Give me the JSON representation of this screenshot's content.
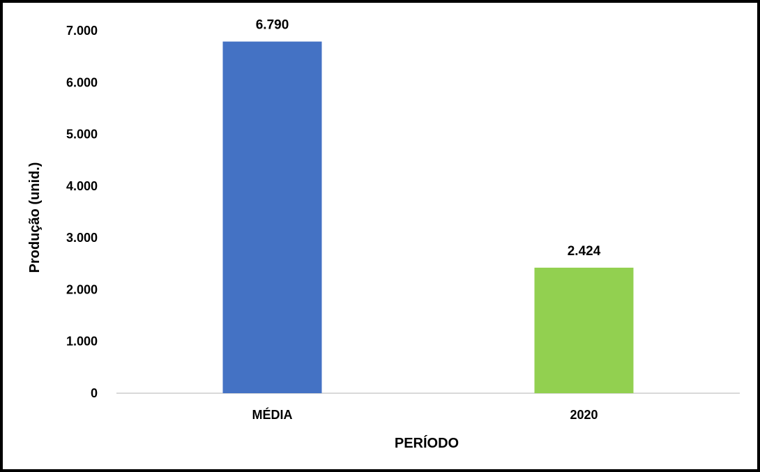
{
  "chart_data": {
    "type": "bar",
    "categories": [
      "MÉDIA",
      "2020"
    ],
    "values": [
      6790,
      2424
    ],
    "value_labels": [
      "6.790",
      "2.424"
    ],
    "colors": [
      "#4472C4",
      "#92D050"
    ],
    "xlabel": "PERÍODO",
    "ylabel": "Produção (unid.)",
    "ylim": [
      0,
      7000
    ],
    "yticks": [
      0,
      1000,
      2000,
      3000,
      4000,
      5000,
      6000,
      7000
    ],
    "ytick_labels": [
      "0",
      "1.000",
      "2.000",
      "3.000",
      "4.000",
      "5.000",
      "6.000",
      "7.000"
    ],
    "grid": false,
    "legend": "none",
    "axis_line_color": "#D9D9D9"
  }
}
